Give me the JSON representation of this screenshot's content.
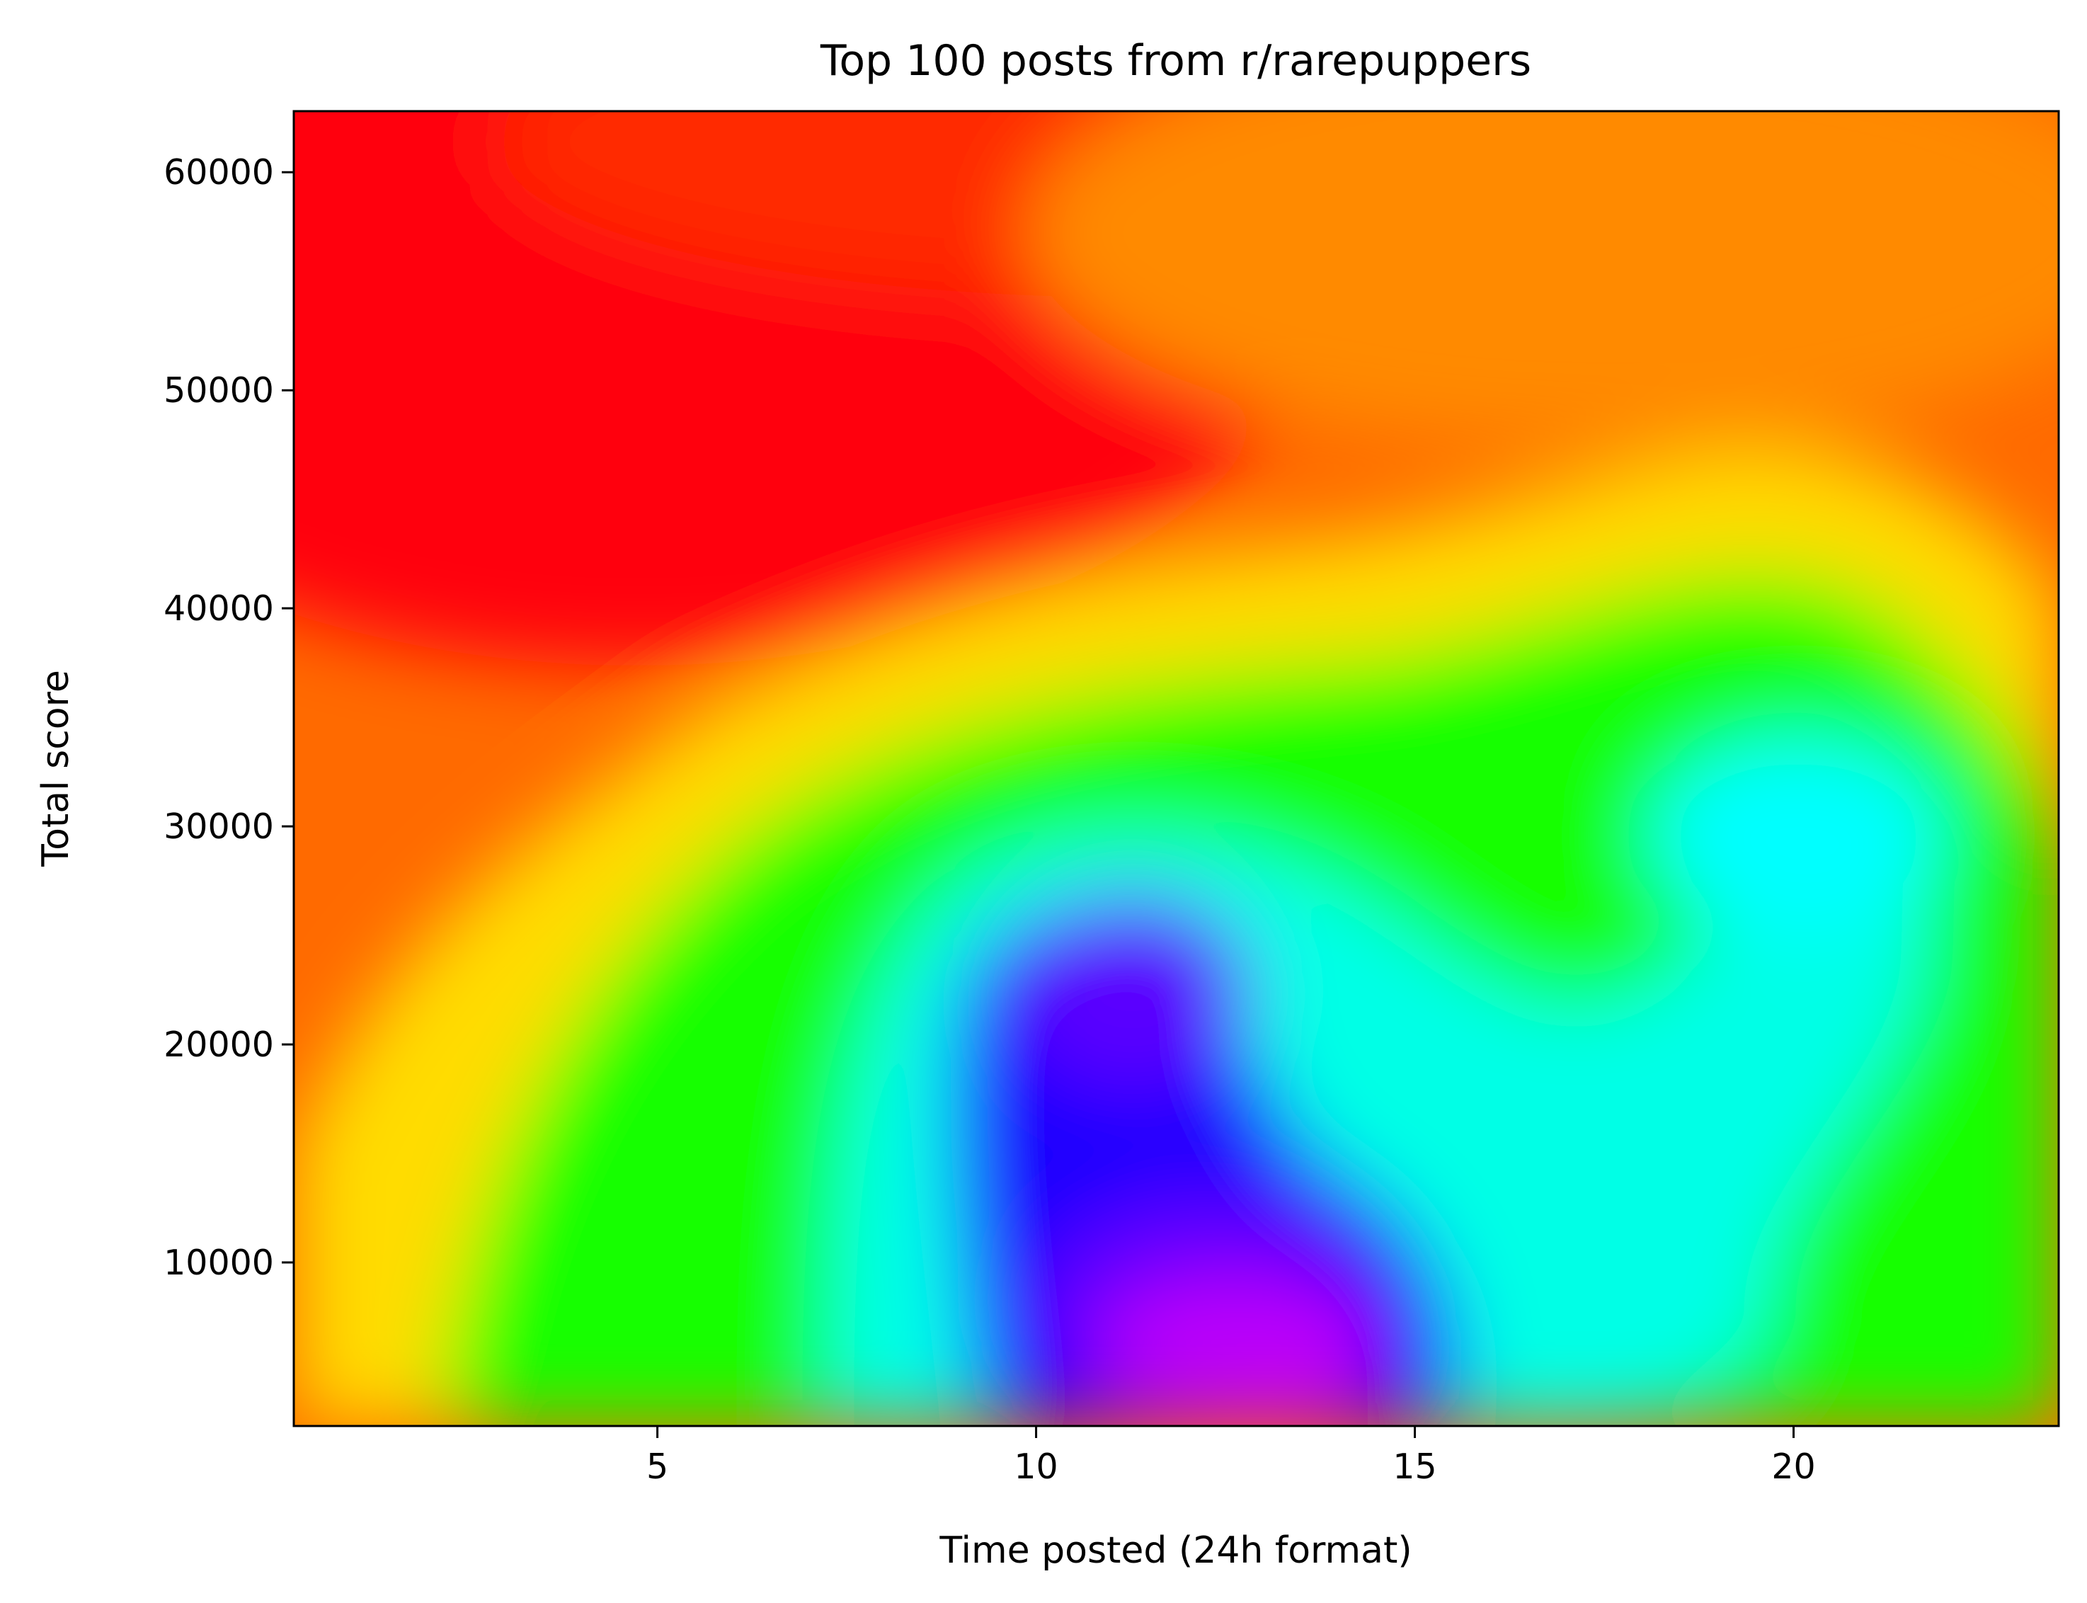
{
  "chart_data": {
    "type": "heatmap",
    "title": "Top 100 posts from r/rarepuppers",
    "xlabel": "Time posted (24h format)",
    "ylabel": "Total score",
    "xlim": [
      0.2,
      23.5
    ],
    "ylim": [
      2500,
      62800
    ],
    "xticks": [
      5,
      10,
      15,
      20
    ],
    "yticks": [
      10000,
      20000,
      30000,
      40000,
      50000,
      60000
    ],
    "colormap": "gist_rainbow",
    "colorbar": false,
    "hotspots": [
      {
        "x": 12.7,
        "y": 5800,
        "level": "highest (magenta)"
      },
      {
        "x": 11.3,
        "y": 22500,
        "level": "high (blue/violet)"
      },
      {
        "x": 20.0,
        "y": 29500,
        "level": "medium (cyan)"
      },
      {
        "x": 2.0,
        "y": 55000,
        "level": "lowest (red)"
      }
    ],
    "colors": {
      "axis": "#000000",
      "background": "#ffffff",
      "text": "#000000"
    }
  }
}
